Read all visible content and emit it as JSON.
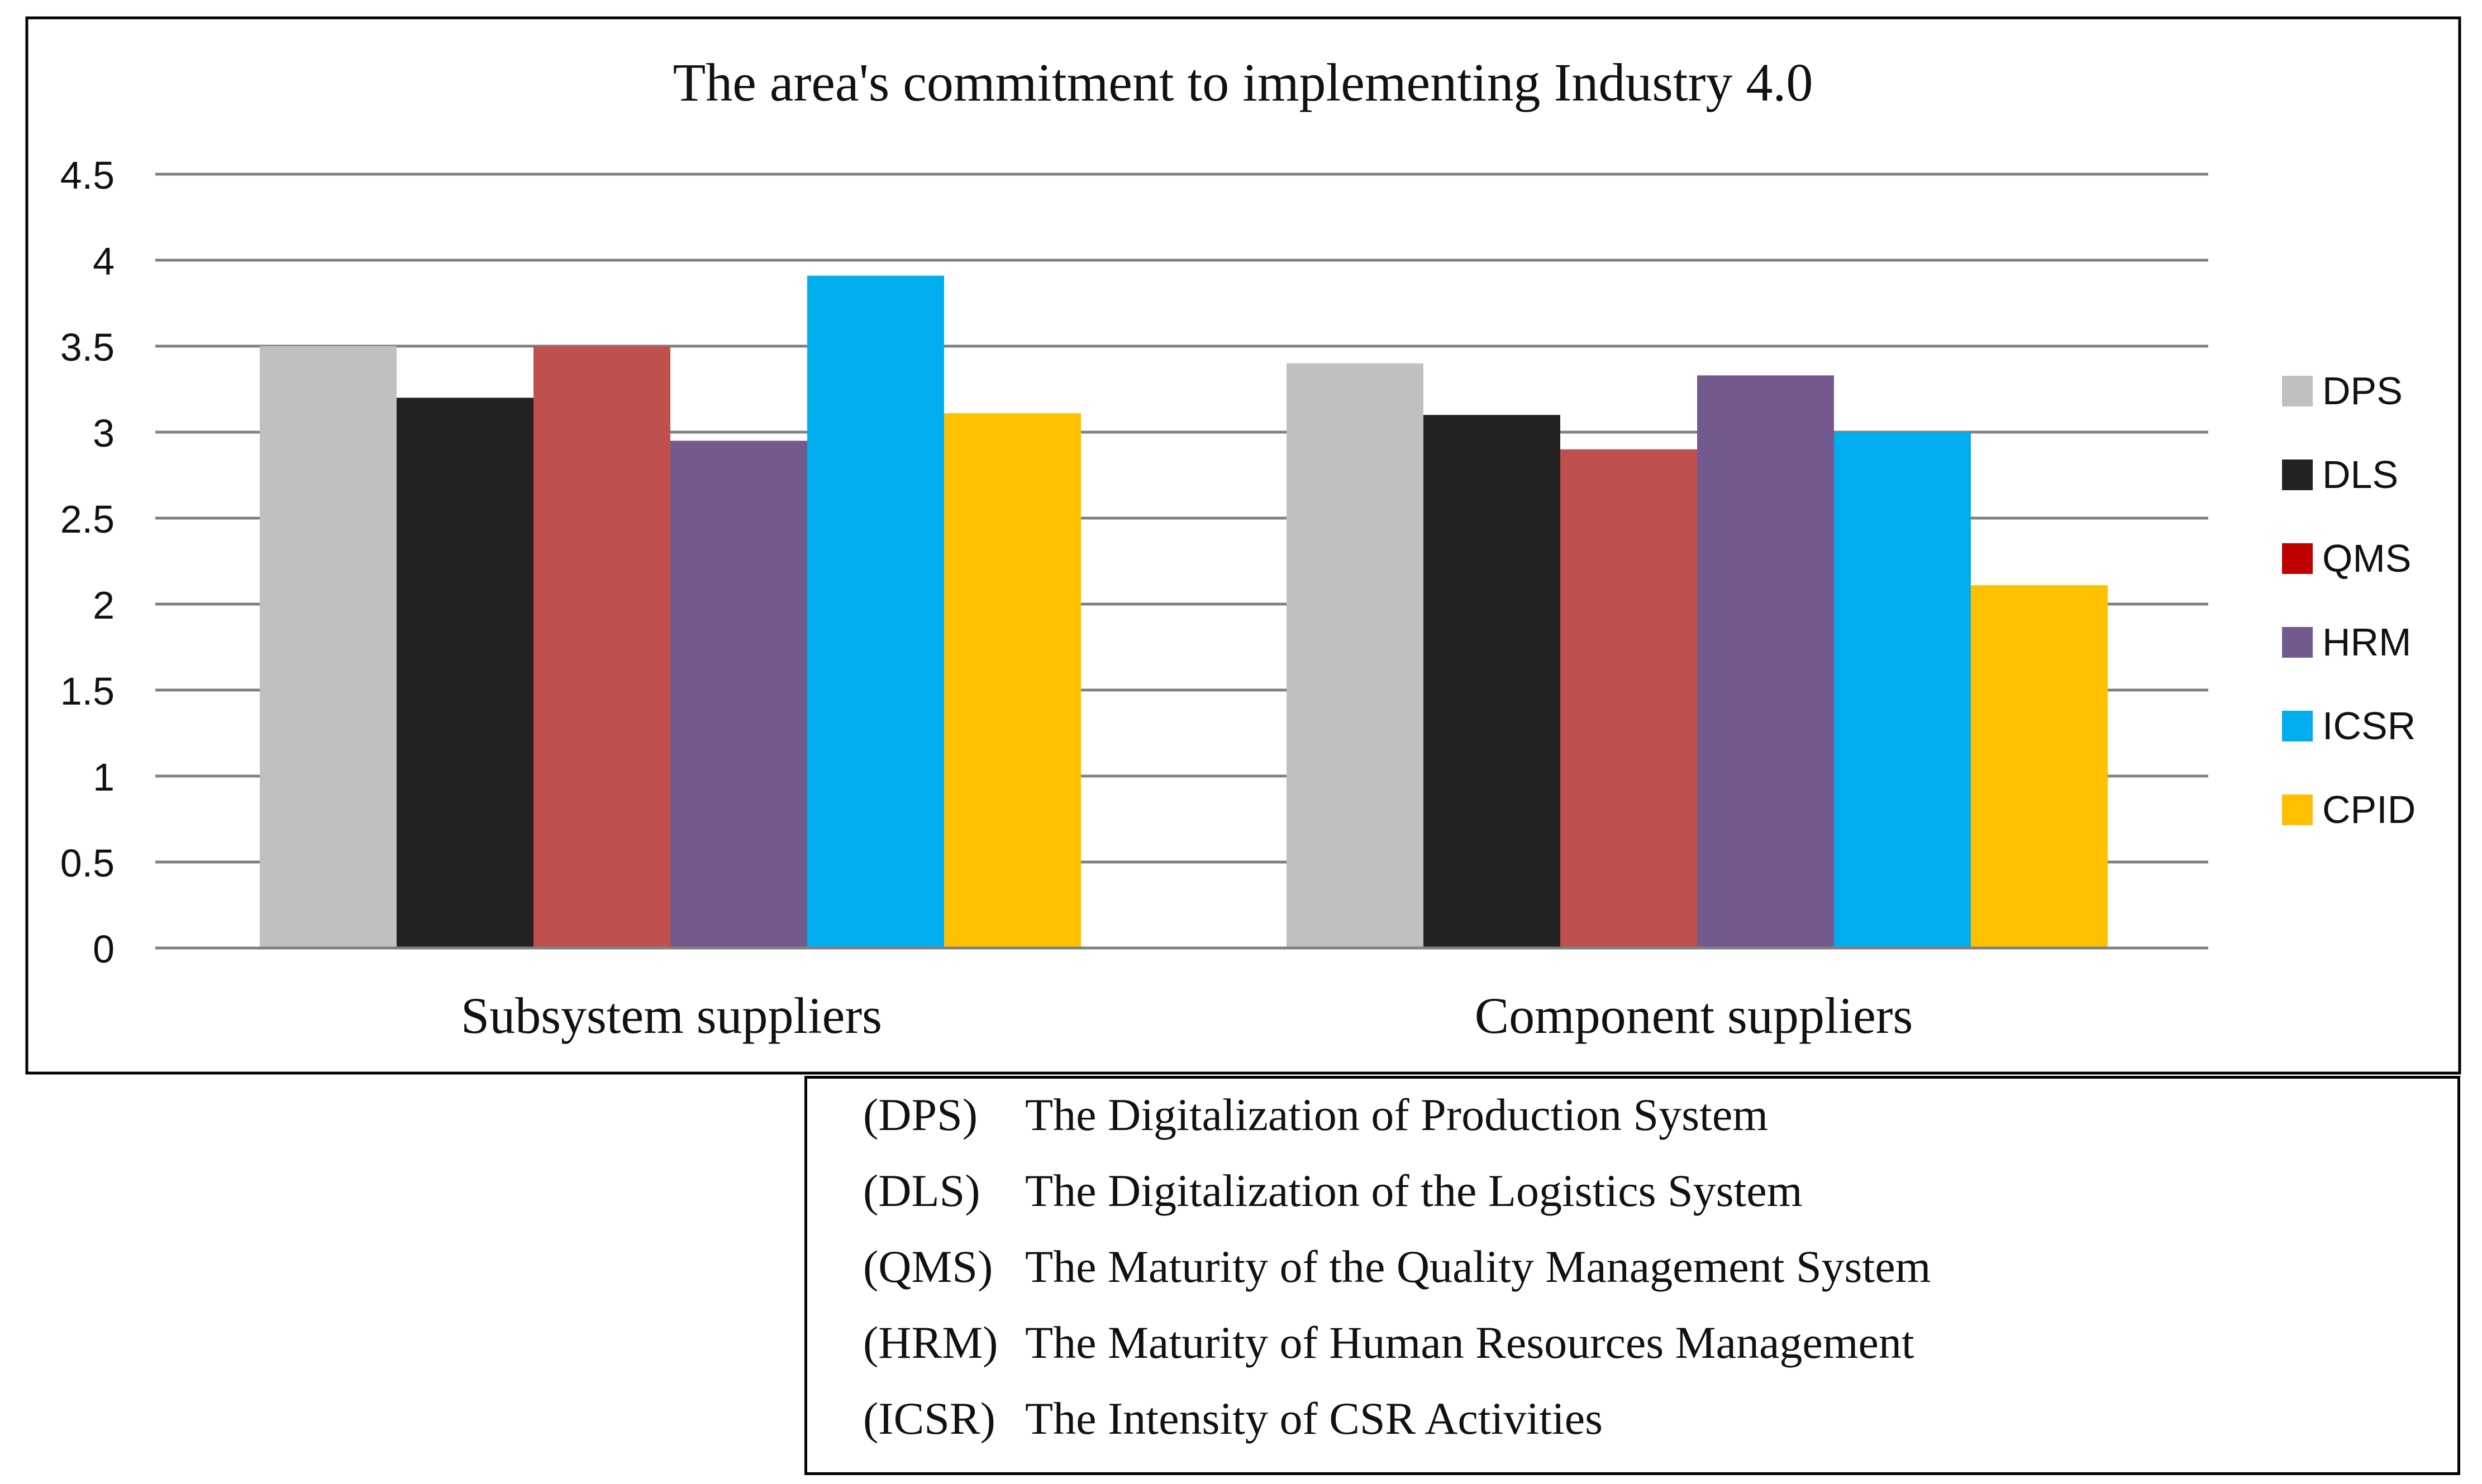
{
  "chart_data": {
    "type": "bar",
    "title": "The area's commitment to implementing Industry 4.0",
    "categories": [
      "Subsystem suppliers",
      "Component suppliers"
    ],
    "series": [
      {
        "name": "DPS",
        "color": "#C0C0C0",
        "values": [
          3.5,
          3.4
        ]
      },
      {
        "name": "DLS",
        "color": "#222222",
        "values": [
          3.2,
          3.1
        ]
      },
      {
        "name": "QMS",
        "color": "#C0504D",
        "values": [
          3.5,
          2.9
        ]
      },
      {
        "name": "HRM",
        "color": "#725A8F",
        "values": [
          2.95,
          3.33
        ]
      },
      {
        "name": "ICSR",
        "color": "#00AEEF",
        "values": [
          3.91,
          3.0
        ]
      },
      {
        "name": "CPID",
        "color": "#FFC000",
        "values": [
          3.11,
          2.11
        ]
      }
    ],
    "legend_swatch_colors": [
      "#C0C0C0",
      "#222222",
      "#C00000",
      "#725A8F",
      "#00AEEF",
      "#FFC000"
    ],
    "y_ticks": [
      "0",
      "0.5",
      "1",
      "1.5",
      "2",
      "2.5",
      "3",
      "3.5",
      "4",
      "4.5"
    ],
    "ylim": [
      0,
      4.5
    ],
    "xlabel": "",
    "ylabel": "",
    "grid": true,
    "legend_position": "right"
  },
  "abbreviations": [
    {
      "code": "(DPS)",
      "text": "The Digitalization of Production System"
    },
    {
      "code": "(DLS)",
      "text": "The Digitalization of the Logistics System"
    },
    {
      "code": "(QMS)",
      "text": "The Maturity of the Quality Management System"
    },
    {
      "code": "(HRM)",
      "text": "The Maturity of Human Resources Management"
    },
    {
      "code": "(ICSR)",
      "text": "The Intensity of CSR Activities"
    }
  ]
}
